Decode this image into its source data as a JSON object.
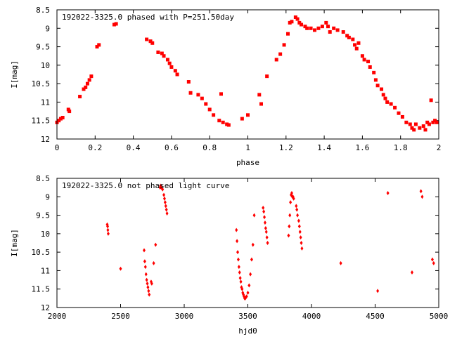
{
  "colors": {
    "points": "#ff0000",
    "axes": "#000000",
    "background": "#ffffff"
  },
  "chart_data": [
    {
      "type": "scatter",
      "title": "192022-3325.0 phased with P=251.50day",
      "xlabel": "phase",
      "ylabel": "I[mag]",
      "xlim": [
        0,
        2
      ],
      "ylim": [
        12,
        8.5
      ],
      "y_inverted": true,
      "xticks": [
        "0",
        "0.2",
        "0.4",
        "0.6",
        "0.8",
        "1",
        "1.2",
        "1.4",
        "1.6",
        "1.8",
        "2"
      ],
      "yticks": [
        "8.5",
        "9",
        "9.5",
        "10",
        "10.5",
        "11",
        "11.5",
        "12"
      ],
      "grid": false,
      "series": [
        {
          "points": [
            [
              0.0,
              11.55
            ],
            [
              0.01,
              11.5
            ],
            [
              0.02,
              11.45
            ],
            [
              0.03,
              11.42
            ],
            [
              0.06,
              11.2
            ],
            [
              0.065,
              11.25
            ],
            [
              0.12,
              10.85
            ],
            [
              0.14,
              10.65
            ],
            [
              0.15,
              10.6
            ],
            [
              0.16,
              10.5
            ],
            [
              0.17,
              10.4
            ],
            [
              0.18,
              10.3
            ],
            [
              0.21,
              9.5
            ],
            [
              0.22,
              9.45
            ],
            [
              0.3,
              8.9
            ],
            [
              0.31,
              8.88
            ],
            [
              0.47,
              9.3
            ],
            [
              0.49,
              9.35
            ],
            [
              0.5,
              9.4
            ],
            [
              0.53,
              9.65
            ],
            [
              0.55,
              9.68
            ],
            [
              0.56,
              9.75
            ],
            [
              0.58,
              9.85
            ],
            [
              0.59,
              9.95
            ],
            [
              0.6,
              10.05
            ],
            [
              0.62,
              10.15
            ],
            [
              0.63,
              10.25
            ],
            [
              0.69,
              10.45
            ],
            [
              0.7,
              10.75
            ],
            [
              0.74,
              10.8
            ],
            [
              0.76,
              10.9
            ],
            [
              0.78,
              11.05
            ],
            [
              0.8,
              11.2
            ],
            [
              0.82,
              11.35
            ],
            [
              0.85,
              11.5
            ],
            [
              0.86,
              10.78
            ],
            [
              0.87,
              11.55
            ],
            [
              0.89,
              11.6
            ],
            [
              0.9,
              11.62
            ],
            [
              0.97,
              11.45
            ],
            [
              1.0,
              11.35
            ],
            [
              1.06,
              10.8
            ],
            [
              1.07,
              11.05
            ],
            [
              1.1,
              10.3
            ],
            [
              1.15,
              9.85
            ],
            [
              1.17,
              9.7
            ],
            [
              1.19,
              9.45
            ],
            [
              1.21,
              9.15
            ],
            [
              1.22,
              8.85
            ],
            [
              1.23,
              8.82
            ],
            [
              1.25,
              8.7
            ],
            [
              1.26,
              8.75
            ],
            [
              1.27,
              8.85
            ],
            [
              1.28,
              8.9
            ],
            [
              1.3,
              8.95
            ],
            [
              1.31,
              9.0
            ],
            [
              1.33,
              9.0
            ],
            [
              1.35,
              9.05
            ],
            [
              1.37,
              9.0
            ],
            [
              1.39,
              8.95
            ],
            [
              1.41,
              8.85
            ],
            [
              1.42,
              8.95
            ],
            [
              1.43,
              9.1
            ],
            [
              1.45,
              9.0
            ],
            [
              1.47,
              9.05
            ],
            [
              1.5,
              9.1
            ],
            [
              1.52,
              9.2
            ],
            [
              1.53,
              9.25
            ],
            [
              1.55,
              9.3
            ],
            [
              1.56,
              9.45
            ],
            [
              1.57,
              9.55
            ],
            [
              1.58,
              9.4
            ],
            [
              1.6,
              9.75
            ],
            [
              1.61,
              9.85
            ],
            [
              1.63,
              9.9
            ],
            [
              1.64,
              10.05
            ],
            [
              1.66,
              10.2
            ],
            [
              1.67,
              10.4
            ],
            [
              1.68,
              10.55
            ],
            [
              1.7,
              10.65
            ],
            [
              1.71,
              10.8
            ],
            [
              1.72,
              10.9
            ],
            [
              1.73,
              11.0
            ],
            [
              1.75,
              11.05
            ],
            [
              1.77,
              11.15
            ],
            [
              1.79,
              11.3
            ],
            [
              1.81,
              11.4
            ],
            [
              1.83,
              11.55
            ],
            [
              1.85,
              11.6
            ],
            [
              1.86,
              11.7
            ],
            [
              1.87,
              11.75
            ],
            [
              1.88,
              11.6
            ],
            [
              1.9,
              11.7
            ],
            [
              1.92,
              11.65
            ],
            [
              1.93,
              11.75
            ],
            [
              1.94,
              11.55
            ],
            [
              1.95,
              11.6
            ],
            [
              1.96,
              10.95
            ],
            [
              1.97,
              11.55
            ],
            [
              1.98,
              11.5
            ],
            [
              1.99,
              11.55
            ]
          ]
        }
      ]
    },
    {
      "type": "scatter",
      "title": "192022-3325.0 not phased light curve",
      "xlabel": "hjd0",
      "ylabel": "I[mag]",
      "xlim": [
        2000,
        5000
      ],
      "ylim": [
        12,
        8.5
      ],
      "y_inverted": true,
      "xticks": [
        "2000",
        "2500",
        "3000",
        "3500",
        "4000",
        "4500",
        "5000"
      ],
      "yticks": [
        "8.5",
        "9",
        "9.5",
        "10",
        "10.5",
        "11",
        "11.5",
        "12"
      ],
      "grid": false,
      "series": [
        {
          "points": [
            [
              2395,
              9.75
            ],
            [
              2398,
              9.8
            ],
            [
              2400,
              9.9
            ],
            [
              2403,
              10.0
            ],
            [
              2500,
              10.95
            ],
            [
              2685,
              10.45
            ],
            [
              2690,
              10.75
            ],
            [
              2695,
              10.9
            ],
            [
              2700,
              11.1
            ],
            [
              2705,
              11.25
            ],
            [
              2710,
              11.35
            ],
            [
              2715,
              11.45
            ],
            [
              2720,
              11.55
            ],
            [
              2725,
              11.65
            ],
            [
              2740,
              11.3
            ],
            [
              2745,
              11.35
            ],
            [
              2760,
              10.8
            ],
            [
              2775,
              10.3
            ],
            [
              2810,
              8.75
            ],
            [
              2815,
              8.7
            ],
            [
              2820,
              8.75
            ],
            [
              2830,
              8.8
            ],
            [
              2840,
              8.95
            ],
            [
              2845,
              9.05
            ],
            [
              2850,
              9.15
            ],
            [
              2855,
              9.25
            ],
            [
              2860,
              9.35
            ],
            [
              2865,
              9.45
            ],
            [
              3410,
              9.9
            ],
            [
              3415,
              10.2
            ],
            [
              3420,
              10.5
            ],
            [
              3425,
              10.7
            ],
            [
              3430,
              10.9
            ],
            [
              3435,
              11.05
            ],
            [
              3440,
              11.2
            ],
            [
              3445,
              11.3
            ],
            [
              3450,
              11.45
            ],
            [
              3455,
              11.5
            ],
            [
              3460,
              11.6
            ],
            [
              3465,
              11.65
            ],
            [
              3470,
              11.7
            ],
            [
              3475,
              11.75
            ],
            [
              3480,
              11.75
            ],
            [
              3490,
              11.7
            ],
            [
              3500,
              11.6
            ],
            [
              3510,
              11.4
            ],
            [
              3520,
              11.1
            ],
            [
              3530,
              10.7
            ],
            [
              3540,
              10.3
            ],
            [
              3550,
              9.5
            ],
            [
              3620,
              9.3
            ],
            [
              3625,
              9.4
            ],
            [
              3630,
              9.55
            ],
            [
              3635,
              9.7
            ],
            [
              3640,
              9.85
            ],
            [
              3645,
              9.95
            ],
            [
              3650,
              10.1
            ],
            [
              3655,
              10.25
            ],
            [
              3820,
              10.05
            ],
            [
              3825,
              9.8
            ],
            [
              3830,
              9.5
            ],
            [
              3835,
              9.15
            ],
            [
              3840,
              8.95
            ],
            [
              3845,
              8.9
            ],
            [
              3850,
              9.0
            ],
            [
              3855,
              9.0
            ],
            [
              3860,
              9.05
            ],
            [
              3880,
              9.25
            ],
            [
              3885,
              9.35
            ],
            [
              3890,
              9.5
            ],
            [
              3900,
              9.65
            ],
            [
              3905,
              9.8
            ],
            [
              3910,
              9.95
            ],
            [
              3915,
              10.1
            ],
            [
              3920,
              10.25
            ],
            [
              3925,
              10.4
            ],
            [
              4230,
              10.8
            ],
            [
              4520,
              11.55
            ],
            [
              4600,
              8.9
            ],
            [
              4790,
              11.05
            ],
            [
              4860,
              8.85
            ],
            [
              4870,
              9.0
            ],
            [
              4950,
              10.7
            ],
            [
              4960,
              10.8
            ]
          ]
        }
      ]
    }
  ]
}
